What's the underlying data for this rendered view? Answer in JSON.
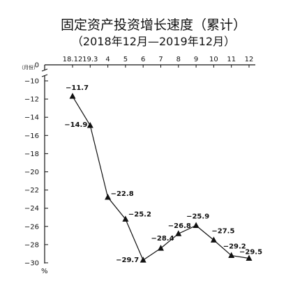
{
  "chart_data": {
    "type": "line",
    "title": "固定资产投资增长速度（累计）",
    "subtitle": "（2018年12月—2019年12月）",
    "unit_label": "（月份）",
    "ylabel": "%",
    "categories": [
      "18.12",
      "19.3",
      "4",
      "5",
      "6",
      "7",
      "8",
      "9",
      "10",
      "11",
      "12"
    ],
    "values": [
      -11.7,
      -14.9,
      -22.8,
      -25.2,
      -29.7,
      -28.4,
      -26.8,
      -25.9,
      -27.5,
      -29.2,
      -29.5
    ],
    "data_labels": [
      "−11.7",
      "−14.9",
      "−22.8",
      "−25.2",
      "−29.7",
      "−28.4",
      "−26.8",
      "−25.9",
      "−27.5",
      "−29.2",
      "−29.5"
    ],
    "yticks": [
      0,
      -10,
      -12,
      -14,
      -16,
      -18,
      -20,
      -22,
      -24,
      -26,
      -28,
      -30
    ],
    "ytick_labels": [
      "0",
      "−10",
      "−12",
      "−14",
      "−16",
      "−18",
      "−20",
      "−22",
      "−24",
      "−26",
      "−28",
      "−30"
    ],
    "axis_break_between": [
      0,
      -10
    ],
    "marker": "triangle",
    "grid": false,
    "color": "#111111"
  }
}
